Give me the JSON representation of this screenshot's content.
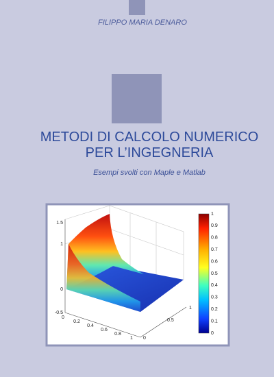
{
  "author": "FILIPPO MARIA DENARO",
  "title": [
    "METODI DI CALCOLO NUMERICO",
    "PER L’INGEGNERIA"
  ],
  "subtitle": "Esempi svolti con Maple e Matlab",
  "figure": {
    "z_labels": [
      "1.5",
      "1",
      "0",
      "-0.5"
    ],
    "x_labels": [
      "0",
      "0.2",
      "0.4",
      "0.6",
      "0.8",
      "1"
    ],
    "y_labels": [
      "0",
      "0.5",
      "1"
    ],
    "colorbar_labels": [
      "1",
      "0.9",
      "0.8",
      "0.7",
      "0.6",
      "0.5",
      "0.4",
      "0.3",
      "0.2",
      "0.1",
      "0"
    ]
  }
}
